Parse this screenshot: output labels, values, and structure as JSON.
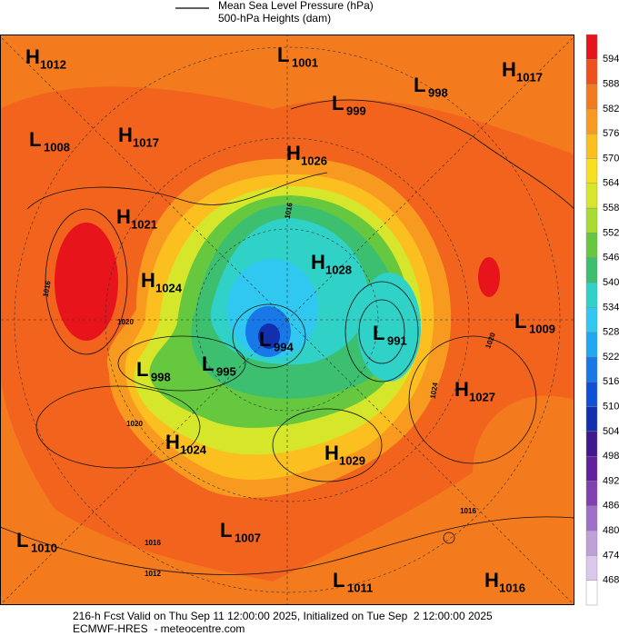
{
  "header": {
    "legend_line": "Mean Sea Level Pressure (hPa)",
    "legend_fill": "500-hPa Heights (dam)"
  },
  "centers": [
    {
      "type": "H",
      "value": 1012
    },
    {
      "type": "L",
      "value": 1001
    },
    {
      "type": "H",
      "value": 1017
    },
    {
      "type": "L",
      "value": 998
    },
    {
      "type": "L",
      "value": 999
    },
    {
      "type": "L",
      "value": 1008
    },
    {
      "type": "H",
      "value": 1017
    },
    {
      "type": "H",
      "value": 1026
    },
    {
      "type": "H",
      "value": 1021
    },
    {
      "type": "H",
      "value": 1028
    },
    {
      "type": "H",
      "value": 1024
    },
    {
      "type": "L",
      "value": 991
    },
    {
      "type": "L",
      "value": 994
    },
    {
      "type": "L",
      "value": 998
    },
    {
      "type": "L",
      "value": 995
    },
    {
      "type": "L",
      "value": 1009
    },
    {
      "type": "H",
      "value": 1027
    },
    {
      "type": "H",
      "value": 1024
    },
    {
      "type": "H",
      "value": 1029
    },
    {
      "type": "L",
      "value": 1010
    },
    {
      "type": "L",
      "value": 1007
    },
    {
      "type": "L",
      "value": 1011
    },
    {
      "type": "H",
      "value": 1016
    }
  ],
  "contour_labels": [
    1016,
    1020,
    1020,
    1016,
    1012,
    1024,
    1016,
    1020,
    1016
  ],
  "colorbar": {
    "levels": [
      594,
      588,
      582,
      576,
      570,
      564,
      558,
      552,
      546,
      540,
      534,
      528,
      522,
      516,
      510,
      504,
      498,
      492,
      486,
      480,
      474,
      468
    ],
    "colors": [
      "#e8141c",
      "#f0501e",
      "#f47a1e",
      "#f89a20",
      "#fbc020",
      "#f6e020",
      "#d6e62a",
      "#a8dc30",
      "#66c83e",
      "#3cc070",
      "#30d2c8",
      "#30c8f0",
      "#20a8f0",
      "#1878e8",
      "#1050d8",
      "#1030b0",
      "#401890",
      "#6020a0",
      "#8040b0",
      "#a070c8",
      "#c0a0d8",
      "#dcc8ec",
      "#ffffff"
    ]
  },
  "footer": {
    "line1": "216-h Fcst Valid on Thu Sep 11 12:00:00 2025, Initialized on Tue Sep  2 12:00:00 2025",
    "line2": "ECMWF-HRES  - meteocentre.com"
  }
}
